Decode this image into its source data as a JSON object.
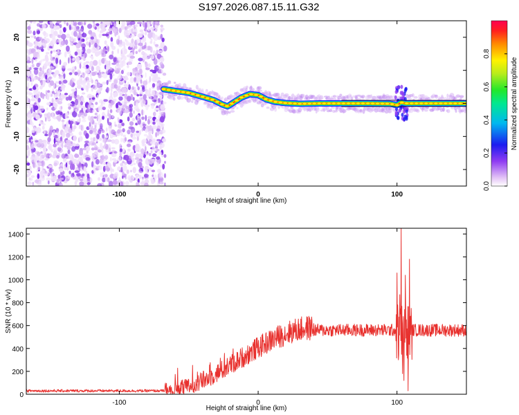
{
  "title": "S197.2026.087.15.11.G32",
  "chart_data": [
    {
      "type": "heatmap",
      "name": "spectrogram",
      "xlabel": "Height of straight line (km)",
      "ylabel": "Frequency (Hz)",
      "xlim": [
        -167,
        150
      ],
      "ylim": [
        -25,
        25
      ],
      "xticks": [
        -100,
        0,
        100
      ],
      "yticks": [
        -20,
        -10,
        0,
        10,
        20
      ],
      "colorbar": {
        "label": "Normalized spectral amplitude",
        "range": [
          0.0,
          1.0
        ],
        "ticks": [
          0.0,
          0.2,
          0.4,
          0.6,
          0.8
        ],
        "tick_labels": [
          "0.0",
          "0.2",
          "0.4",
          "0.6",
          "0.8"
        ]
      },
      "noise_region_x": [
        -167,
        -67
      ],
      "ridge": {
        "x": [
          -68,
          -60,
          -50,
          -40,
          -32,
          -26,
          -22,
          -18,
          -12,
          -6,
          0,
          6,
          12,
          20,
          30,
          45,
          60,
          80,
          95,
          100,
          103,
          106,
          110,
          130,
          150
        ],
        "y": [
          4.3,
          3.8,
          3.2,
          2.0,
          1.0,
          -0.3,
          -0.9,
          0.2,
          1.8,
          2.8,
          2.5,
          1.2,
          0.5,
          0.1,
          -0.1,
          0.0,
          0.0,
          0.0,
          -0.1,
          -0.5,
          0.3,
          0.0,
          0.0,
          0.0,
          0.0
        ]
      }
    },
    {
      "type": "line",
      "name": "snr",
      "xlabel": "Height of straight line (km)",
      "ylabel": "SNR (10 * v/v)",
      "xlim": [
        -167,
        150
      ],
      "ylim": [
        0,
        1450
      ],
      "xticks": [
        -100,
        0,
        100
      ],
      "yticks": [
        0,
        200,
        400,
        600,
        800,
        1000,
        1200,
        1400
      ],
      "series": [
        {
          "name": "SNR",
          "color": "#e8312e",
          "baseline_segments": [
            {
              "x": [
                -167,
                -67
              ],
              "level": 30
            },
            {
              "x": [
                -67,
                40
              ],
              "start_level": 30,
              "end_level": 580
            },
            {
              "x": [
                40,
                150
              ],
              "level": 560
            }
          ],
          "spikes": [
            {
              "x": 100,
              "y": 1060
            },
            {
              "x": 101,
              "y": 300
            },
            {
              "x": 102,
              "y": 870
            },
            {
              "x": 103,
              "y": 1450
            },
            {
              "x": 104,
              "y": 180
            },
            {
              "x": 105,
              "y": 120
            },
            {
              "x": 106,
              "y": 1040
            },
            {
              "x": 107,
              "y": 340
            },
            {
              "x": 108,
              "y": 30
            },
            {
              "x": 109,
              "y": 1180
            },
            {
              "x": 110,
              "y": 520
            }
          ]
        }
      ]
    }
  ]
}
